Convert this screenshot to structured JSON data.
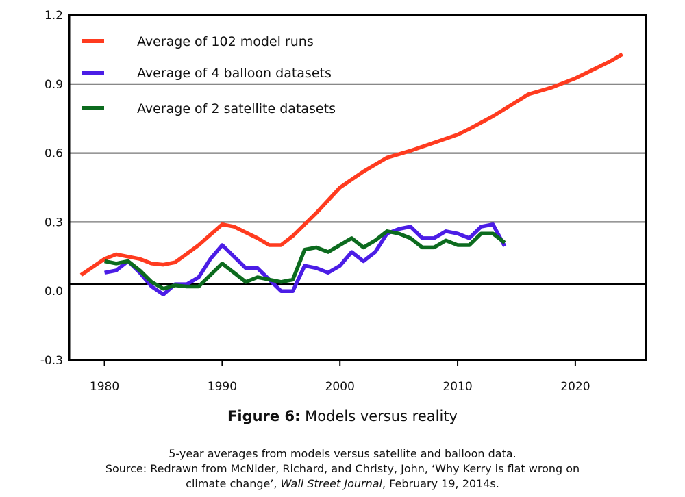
{
  "chart_data": {
    "type": "line",
    "xlim": [
      1977,
      2026
    ],
    "ylim": [
      -0.3,
      1.2
    ],
    "x_ticks": [
      "1980",
      "1990",
      "2000",
      "2010",
      "2020"
    ],
    "x_tick_values": [
      1980,
      1990,
      2000,
      2010,
      2020
    ],
    "y_ticks": [
      "1.2",
      "0.9",
      "0.6",
      "0.3",
      "0.0",
      "-0.3"
    ],
    "y_tick_values": [
      1.2,
      0.9,
      0.6,
      0.3,
      0.0,
      -0.3
    ],
    "gridlines_y": [
      0.9,
      0.6,
      0.3
    ],
    "baseline_y": 0.03,
    "legend_position": "top-left",
    "series": [
      {
        "name": "Average of 102 model runs",
        "color": "#ff3b1f",
        "x": [
          1978,
          1980,
          1981,
          1982,
          1983,
          1984,
          1985,
          1986,
          1988,
          1990,
          1991,
          1993,
          1994,
          1995,
          1996,
          1998,
          2000,
          2002,
          2004,
          2006,
          2008,
          2010,
          2011,
          2013,
          2016,
          2018,
          2020,
          2023,
          2024
        ],
        "y": [
          0.07,
          0.14,
          0.16,
          0.15,
          0.14,
          0.12,
          0.115,
          0.125,
          0.2,
          0.29,
          0.28,
          0.23,
          0.2,
          0.2,
          0.24,
          0.34,
          0.45,
          0.52,
          0.58,
          0.61,
          0.645,
          0.68,
          0.705,
          0.76,
          0.855,
          0.885,
          0.925,
          1.0,
          1.03
        ]
      },
      {
        "name": "Average of 4 balloon datasets",
        "color": "#4b1de6",
        "x": [
          1980,
          1981,
          1982,
          1983,
          1984,
          1985,
          1986,
          1987,
          1988,
          1989,
          1990,
          1991,
          1992,
          1993,
          1994,
          1995,
          1996,
          1997,
          1998,
          1999,
          2000,
          2001,
          2002,
          2003,
          2004,
          2005,
          2006,
          2007,
          2008,
          2009,
          2010,
          2011,
          2012,
          2013,
          2014
        ],
        "y": [
          0.08,
          0.09,
          0.13,
          0.08,
          0.02,
          -0.015,
          0.03,
          0.03,
          0.06,
          0.14,
          0.2,
          0.15,
          0.1,
          0.1,
          0.05,
          0.0,
          0.0,
          0.11,
          0.1,
          0.08,
          0.11,
          0.17,
          0.13,
          0.17,
          0.25,
          0.27,
          0.28,
          0.23,
          0.23,
          0.26,
          0.25,
          0.23,
          0.28,
          0.29,
          0.195
        ]
      },
      {
        "name": "Average of 2 satellite datasets",
        "color": "#0c6b1e",
        "x": [
          1980,
          1981,
          1982,
          1983,
          1984,
          1985,
          1986,
          1987,
          1988,
          1989,
          1990,
          1991,
          1992,
          1993,
          1994,
          1995,
          1996,
          1997,
          1998,
          1999,
          2000,
          2001,
          2002,
          2003,
          2004,
          2005,
          2006,
          2007,
          2008,
          2009,
          2010,
          2011,
          2012,
          2013,
          2014
        ],
        "y": [
          0.13,
          0.12,
          0.13,
          0.09,
          0.04,
          0.01,
          0.025,
          0.02,
          0.02,
          0.07,
          0.12,
          0.08,
          0.04,
          0.06,
          0.05,
          0.04,
          0.05,
          0.18,
          0.19,
          0.17,
          0.2,
          0.23,
          0.19,
          0.22,
          0.26,
          0.25,
          0.23,
          0.19,
          0.19,
          0.22,
          0.2,
          0.2,
          0.25,
          0.25,
          0.21
        ]
      }
    ]
  },
  "figure": {
    "label": "Figure 6:",
    "title": " Models versus reality",
    "note_line1": "5-year averages from models versus satellite and balloon data.",
    "note_line2": "Source: Redrawn from McNider, Richard, and Christy, John, ‘Why Kerry is flat wrong on",
    "note_line3a": "climate change’, ",
    "note_line3_journal": "Wall Street Journal",
    "note_line3b": ", February 19, 2014s."
  }
}
